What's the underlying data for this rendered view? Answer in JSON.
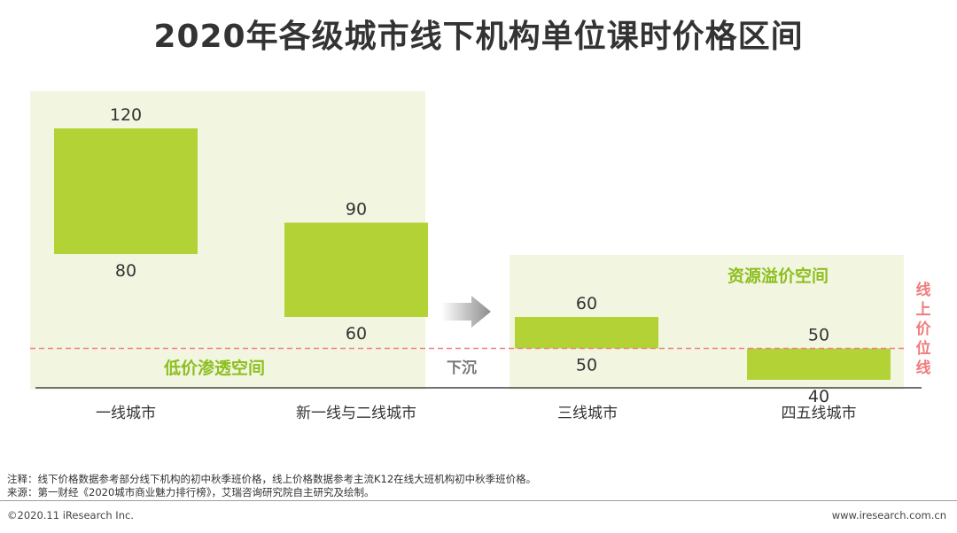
{
  "title": "2020年各级城市线下机构单位课时价格区间",
  "chart_data": {
    "type": "bar",
    "subtype": "floating-range",
    "categories": [
      "一线城市",
      "新一线与二线城市",
      "三线城市",
      "四五线城市"
    ],
    "ranges": [
      {
        "low": 80,
        "high": 120
      },
      {
        "low": 60,
        "high": 90
      },
      {
        "low": 50,
        "high": 60
      },
      {
        "low": 40,
        "high": 50
      }
    ],
    "online_price_line": 50,
    "annotations": {
      "low_zone": "低价渗透空间",
      "premium_zone": "资源溢价空间",
      "arrow_label": "下沉",
      "online_line_label": "线上价位线"
    },
    "colors": {
      "bar": "#b2d235",
      "zone": "#f2f6e1",
      "zone_text": "#8dbf1f",
      "line": "#f08080",
      "line_label": "#f07c7c",
      "arrow": "#8c8c8c"
    }
  },
  "notes": {
    "note": "注释：线下价格数据参考部分线下机构的初中秋季班价格，线上价格数据参考主流K12在线大班机构初中秋季班价格。",
    "source": "来源：第一财经《2020城市商业魅力排行榜》，艾瑞咨询研究院自主研究及绘制。"
  },
  "footer": {
    "copyright": "©2020.11 iResearch Inc.",
    "website": "www.iresearch.com.cn"
  }
}
